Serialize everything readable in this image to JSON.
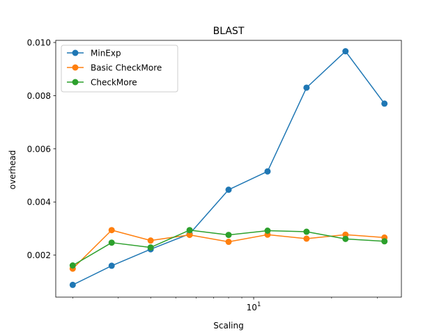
{
  "chart_data": {
    "type": "line",
    "title": "BLAST",
    "xlabel": "Scaling",
    "ylabel": "overhead",
    "x_scale": "log",
    "x": [
      2,
      2.828,
      4,
      5.657,
      8,
      11.314,
      16,
      22.627,
      32
    ],
    "xlim": [
      1.72,
      37.2
    ],
    "ylim": [
      0.00042,
      0.01008
    ],
    "x_ticks": [
      {
        "value": 10,
        "base": "10",
        "exp": "1"
      }
    ],
    "y_ticks": [
      "0.002",
      "0.004",
      "0.006",
      "0.008",
      "0.010"
    ],
    "grid": false,
    "legend_position": "top-left",
    "series": [
      {
        "name": "MinExp",
        "color": "#1f77b4",
        "values": [
          0.00088,
          0.0016,
          0.00222,
          0.0028,
          0.00446,
          0.00515,
          0.0083,
          0.00967,
          0.0077
        ]
      },
      {
        "name": "Basic CheckMore",
        "color": "#ff7f0e",
        "values": [
          0.00149,
          0.00294,
          0.00255,
          0.00276,
          0.0025,
          0.00277,
          0.00262,
          0.00277,
          0.00266
        ]
      },
      {
        "name": "CheckMore",
        "color": "#2ca02c",
        "values": [
          0.00161,
          0.00247,
          0.00229,
          0.00294,
          0.00276,
          0.00292,
          0.00288,
          0.00261,
          0.00252
        ]
      }
    ]
  }
}
